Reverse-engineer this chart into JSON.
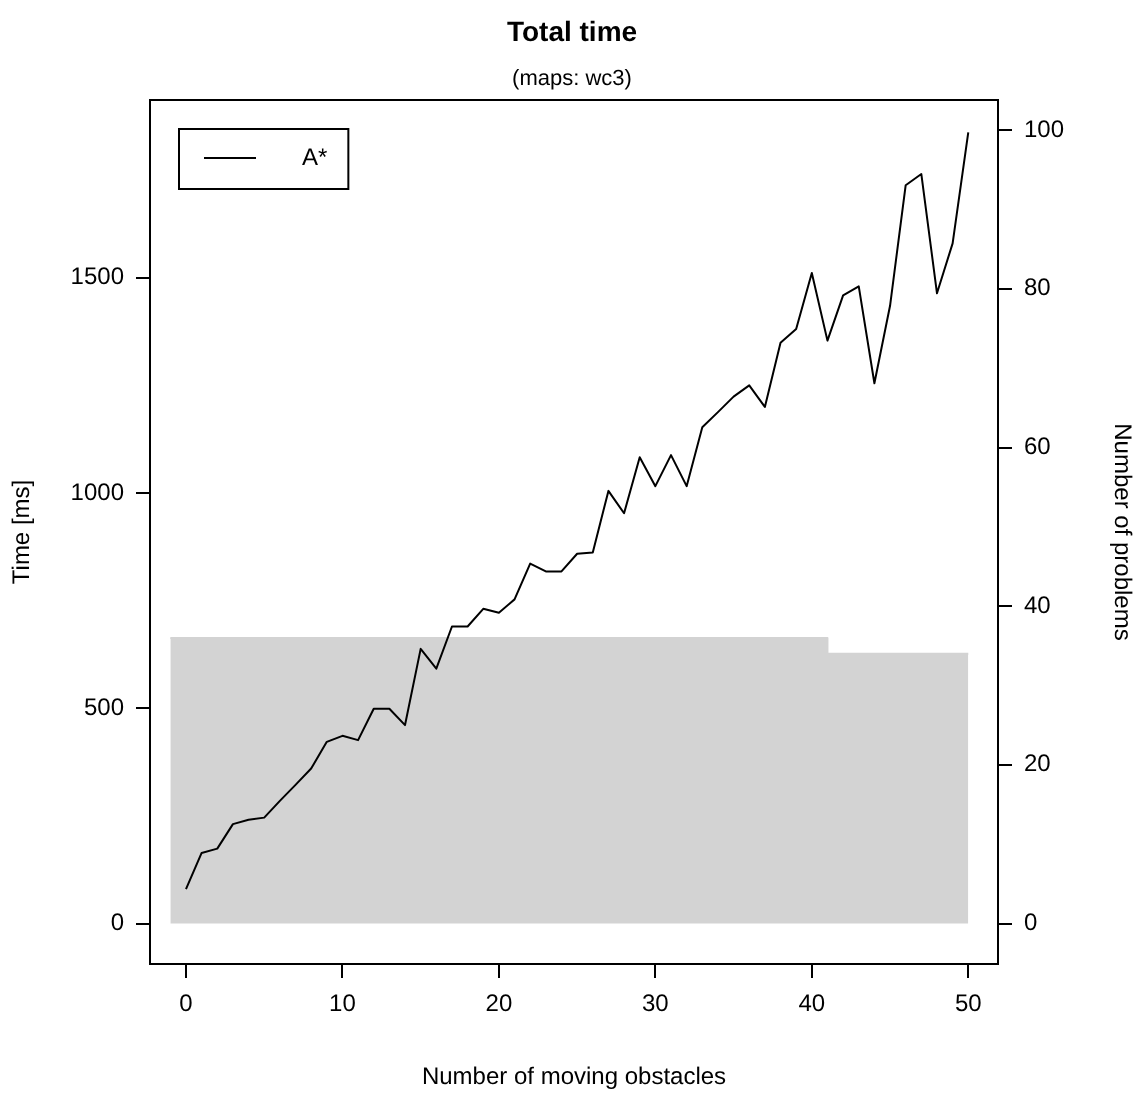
{
  "chart_data": {
    "type": "line",
    "title": "Total time",
    "subtitle": "(maps: wc3)",
    "xlabel": "Number of moving obstacles",
    "ylabel": "Time [ms]",
    "y2label": "Number of problems",
    "x": [
      0,
      1,
      2,
      3,
      4,
      5,
      6,
      7,
      8,
      9,
      10,
      11,
      12,
      13,
      14,
      15,
      16,
      17,
      18,
      19,
      20,
      21,
      22,
      23,
      24,
      25,
      26,
      27,
      28,
      29,
      30,
      31,
      32,
      33,
      34,
      35,
      36,
      37,
      38,
      39,
      40,
      41,
      42,
      43,
      44,
      45,
      46,
      47,
      48,
      49,
      50
    ],
    "series": [
      {
        "type": "area",
        "axis": "y2",
        "x": [
          -1,
          41,
          41,
          50
        ],
        "values": [
          36,
          36,
          34,
          34
        ],
        "color": "#d3d3d3"
      },
      {
        "name": "A*",
        "color": "#000000",
        "values": [
          80,
          164,
          174,
          231,
          241,
          246,
          285,
          322,
          360,
          422,
          436,
          426,
          499,
          499,
          461,
          638,
          592,
          690,
          690,
          731,
          722,
          753,
          836,
          818,
          818,
          859,
          862,
          1005,
          953,
          1083,
          1016,
          1088,
          1016,
          1153,
          1188,
          1224,
          1250,
          1200,
          1349,
          1381,
          1511,
          1354,
          1459,
          1480,
          1255,
          1435,
          1715,
          1741,
          1464,
          1580,
          1838
        ]
      }
    ],
    "xlim": [
      -2.3,
      51.9
    ],
    "xticks": [
      0,
      10,
      20,
      30,
      40,
      50
    ],
    "ylim": [
      -94,
      1913
    ],
    "yticks": [
      0,
      500,
      1000,
      1500
    ],
    "y2lim": [
      -5.1,
      103.8
    ],
    "y2ticks": [
      0,
      20,
      40,
      60,
      80,
      100
    ],
    "grid": false,
    "legend": "top left",
    "marker": "none",
    "line_style": "solid"
  }
}
